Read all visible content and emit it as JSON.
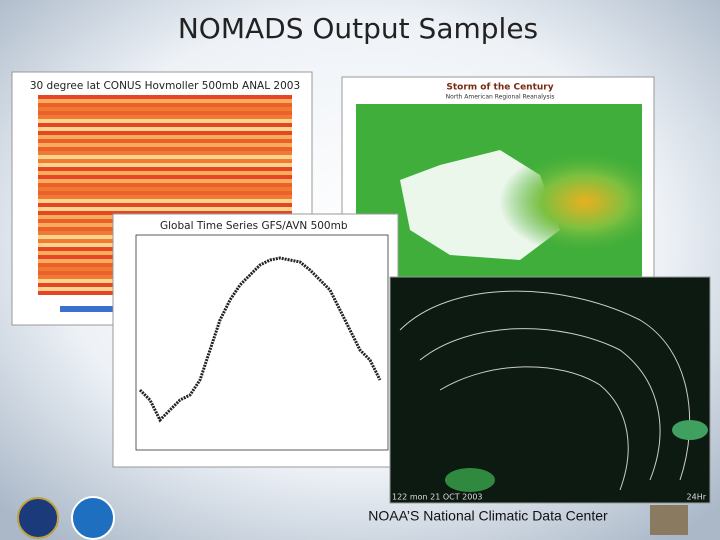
{
  "slide": {
    "title": "NOMADS Output Samples",
    "footer": "NOAA’S National Climatic Data Center",
    "images": [
      {
        "title": "30 degree lat CONUS Hovmoller 500mb ANAL 2003"
      },
      {
        "title": "Storm of the Century",
        "subtitle": "North American Regional Reanalysis"
      },
      {
        "title": "Global Time Series GFS/AVN 500mb"
      },
      {
        "caption": "122 mon 21 OCT 2003",
        "corner": "24Hr"
      }
    ]
  }
}
